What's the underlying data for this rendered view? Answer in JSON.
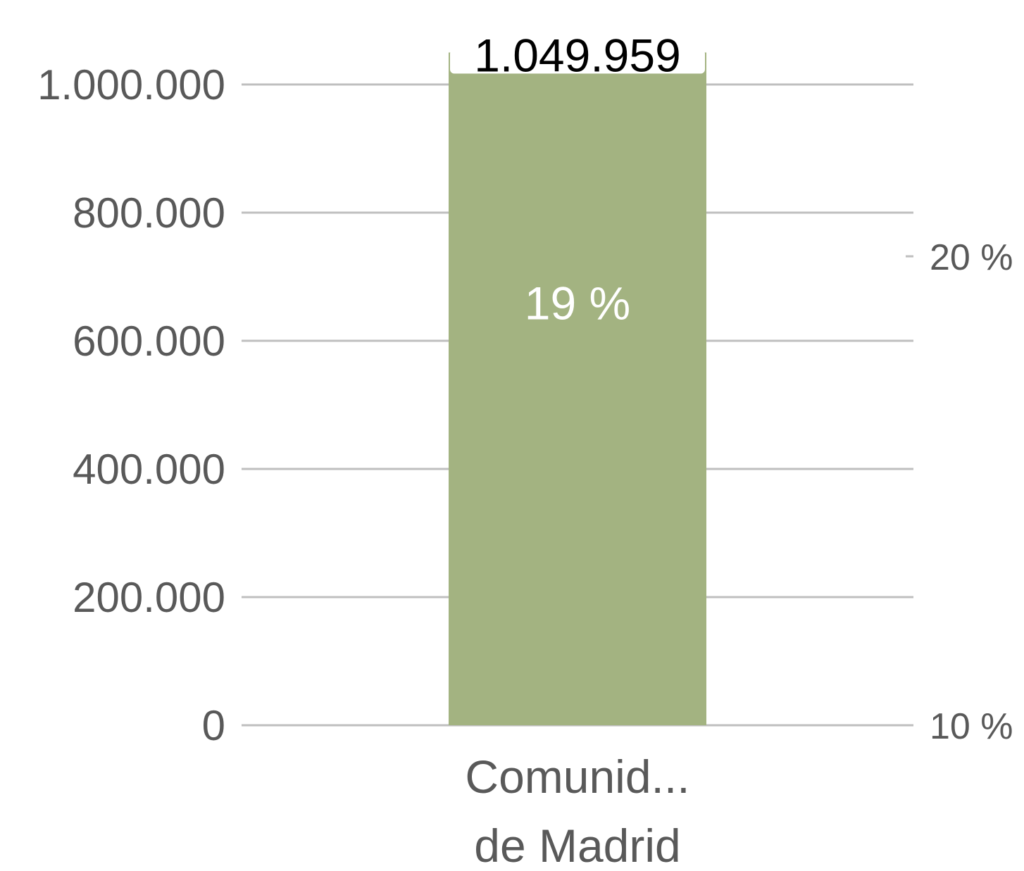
{
  "chart_data": {
    "type": "bar",
    "categories": [
      "Comunid... de Madrid"
    ],
    "category_label_lines": [
      "Comunid...",
      "de Madrid"
    ],
    "values": [
      1049959
    ],
    "value_labels": [
      "1.049.959"
    ],
    "inner_labels": [
      "19 %"
    ],
    "percent_values": [
      19
    ],
    "ylim": [
      0,
      1049959
    ],
    "y_ticks": [
      0,
      200000,
      400000,
      600000,
      800000,
      1000000
    ],
    "y_tick_labels": [
      "0",
      "200.000",
      "400.000",
      "600.000",
      "800.000",
      "1.000.000"
    ],
    "y2_ticks": [
      10,
      20
    ],
    "y2_tick_labels": [
      "10 %",
      "20 %"
    ],
    "y2lim": [
      10,
      24.6
    ],
    "grid": true,
    "colors": {
      "bar": "#a3b381",
      "grid": "#bfbfbf",
      "tick_text": "#595959",
      "total_label": "#000000",
      "inner_label": "#ffffff"
    }
  }
}
